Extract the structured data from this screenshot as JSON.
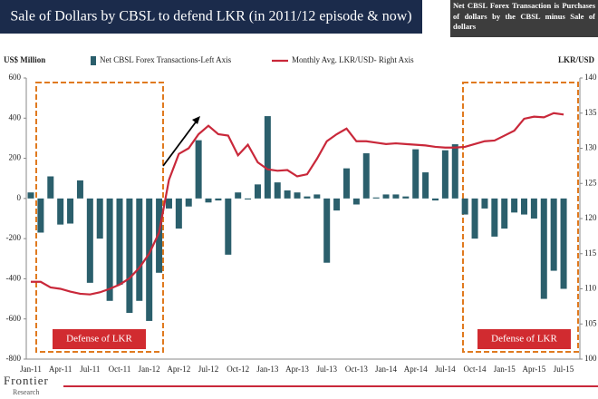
{
  "chart_data": {
    "type": "bar_line",
    "title": "Sale of Dollars by CBSL to defend LKR (in 2011/12 episode & now)",
    "note": "Net CBSL Forex Transaction is Purchases of dollars by the CBSL minus Sale of dollars",
    "y_label": "US$ Million",
    "y2_label": "LKR/USD",
    "annotations": [
      "Defense of LKR",
      "Defense of LKR"
    ],
    "logo": [
      "Frontier",
      "Research"
    ],
    "categories": [
      "Jan-11",
      null,
      null,
      "Apr-11",
      null,
      null,
      "Jul-11",
      null,
      null,
      "Oct-11",
      null,
      null,
      "Jan-12",
      null,
      null,
      "Apr-12",
      null,
      null,
      "Jul-12",
      null,
      null,
      "Oct-12",
      null,
      null,
      "Jan-13",
      null,
      null,
      "Apr-13",
      null,
      null,
      "Jul-13",
      null,
      null,
      "Oct-13",
      null,
      null,
      "Jan-14",
      null,
      null,
      "Apr-14",
      null,
      null,
      "Jul-14",
      null,
      null,
      "Oct-14",
      null,
      null,
      "Jan-15",
      null,
      null,
      "Apr-15",
      null,
      null,
      "Jul-15"
    ],
    "series": [
      {
        "name": "Net CBSL Forex Transactions-Left Axis",
        "color": "#2b5f6c",
        "type": "bar",
        "values": [
          30,
          -170,
          110,
          -130,
          -125,
          90,
          -420,
          -200,
          -510,
          -430,
          -570,
          -510,
          -610,
          -370,
          -50,
          -150,
          -40,
          290,
          -20,
          -10,
          -280,
          30,
          -5,
          70,
          410,
          80,
          40,
          30,
          10,
          20,
          -320,
          -60,
          150,
          -30,
          225,
          5,
          20,
          20,
          10,
          245,
          130,
          -10,
          240,
          270,
          -80,
          -200,
          -50,
          -190,
          -150,
          -70,
          -80,
          -100,
          -500,
          -360,
          -450
        ]
      },
      {
        "name": "Monthly Avg. LKR/USD- Right Axis",
        "color": "#c9283a",
        "type": "line",
        "axis": "y2",
        "values": [
          111,
          111,
          110.2,
          110,
          109.6,
          109.3,
          109.2,
          109.5,
          110,
          110.6,
          111.5,
          113,
          115,
          118,
          125.5,
          129.2,
          130,
          132,
          133.2,
          132,
          131.8,
          129,
          130.5,
          128,
          127,
          126.8,
          126.9,
          126,
          126.3,
          128.5,
          131,
          132,
          132.8,
          131,
          131,
          130.8,
          130.6,
          130.7,
          130.6,
          130.5,
          130.4,
          130.2,
          130.1,
          130.1,
          130.2,
          130.6,
          131,
          131.1,
          131.8,
          132.5,
          134.2,
          134.5,
          134.4,
          135,
          134.8
        ]
      }
    ],
    "ylim": [
      -800,
      600
    ],
    "yticks": [
      600,
      400,
      200,
      0,
      -200,
      -400,
      -600,
      -800
    ],
    "y2lim": [
      100,
      140
    ],
    "y2ticks": [
      140,
      135,
      130,
      125,
      120,
      115,
      110,
      105,
      100
    ],
    "grid": false
  }
}
